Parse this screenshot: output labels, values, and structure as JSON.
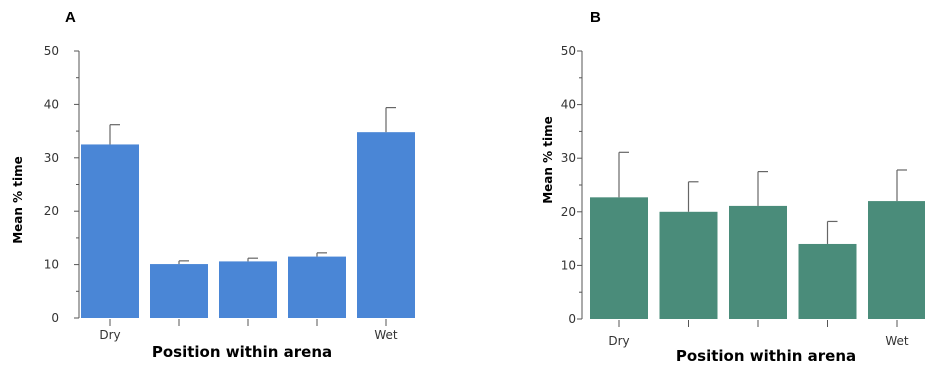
{
  "chart_data": [
    {
      "type": "bar",
      "panel_label": "A",
      "categories": [
        "Dry",
        "",
        "",
        "",
        "Wet"
      ],
      "values": [
        32.5,
        10.1,
        10.6,
        11.5,
        34.8
      ],
      "errors": [
        3.7,
        0.6,
        0.6,
        0.7,
        4.6
      ],
      "bar_color": "#4a86d6",
      "xlabel": "Position within arena",
      "ylabel": "Mean % time",
      "ylim": [
        0,
        50
      ],
      "yticks": [
        0,
        10,
        20,
        30,
        40,
        50
      ]
    },
    {
      "type": "bar",
      "panel_label": "B",
      "categories": [
        "Dry",
        "",
        "",
        "",
        "Wet"
      ],
      "values": [
        22.7,
        20.0,
        21.1,
        14.0,
        22.0
      ],
      "errors": [
        8.4,
        5.6,
        6.4,
        4.2,
        5.8
      ],
      "bar_color": "#4a8c7a",
      "xlabel": "Position within arena",
      "ylabel": "Mean % time",
      "ylim": [
        0,
        50
      ],
      "yticks": [
        0,
        10,
        20,
        30,
        40,
        50
      ]
    }
  ]
}
